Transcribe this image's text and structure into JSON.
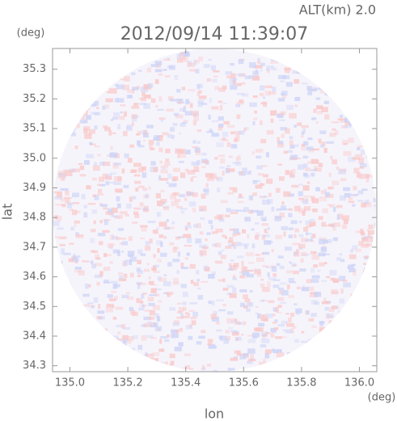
{
  "chart_data": {
    "type": "image",
    "title": "2012/09/14 11:39:07",
    "annotation": "ALT(km) 2.0",
    "y_unit": "(deg)",
    "x_unit": "(deg)",
    "xlabel": "lon",
    "ylabel": "lat",
    "xlim": [
      134.94,
      136.06
    ],
    "xticks": [
      {
        "value": 135.0,
        "label": "135.0"
      },
      135.2,
      135.4,
      135.6,
      135.8,
      {
        "value": 136.0,
        "label": "136.0"
      }
    ],
    "ylim": [
      34.28,
      35.37
    ],
    "yticks": [
      34.3,
      34.4,
      34.5,
      34.6,
      34.7,
      34.8,
      34.9,
      {
        "value": 35.0,
        "label": "35.0"
      },
      35.1,
      35.2,
      35.3
    ]
  }
}
